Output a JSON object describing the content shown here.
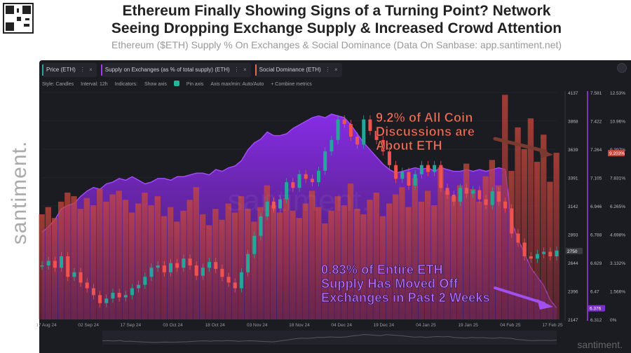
{
  "header": {
    "headline_line1": "Ethereum Finally Showing Signs of a Turning Point? Network",
    "headline_line2": "Seeing Dropping Exchange Supply & Increased Crowd Attention",
    "subtitle": "Ethereum ($ETH) Supply % On Exchanges & Social Dominance (Data On Sanbase: app.santiment.net)"
  },
  "side_brand": "santiment.",
  "watermark": "santiment.",
  "tabs": [
    {
      "label": "Price (ETH)",
      "color": "#26a69a"
    },
    {
      "label": "Supply on Exchanges (as % of total supply) (ETH)",
      "color": "#9b3ef0"
    },
    {
      "label": "Social Dominance (ETH)",
      "color": "#e86a4b"
    }
  ],
  "toolbar": {
    "style": "Style: Candles",
    "interval": "Interval: 12h",
    "indicators": "Indicators:",
    "show_axis": "Show axis",
    "pin_axis": "Pin axis",
    "axis_max_min": "Axis max/min: Auto/Auto",
    "combine": "+ Combine metrics"
  },
  "annotations": {
    "top": [
      "9.2% of All Coin",
      "Discussions are",
      "About ETH"
    ],
    "bottom": [
      "0.83% of Entire ETH",
      "Supply Has Moved Off",
      "Exchanges in Past 2 Weeks"
    ]
  },
  "chart_data": {
    "type": "line",
    "x_ticks": [
      "17 Aug 24",
      "02 Sep 24",
      "17 Sep 24",
      "03 Oct 24",
      "18 Oct 24",
      "03 Nov 24",
      "18 Nov 24",
      "04 Dec 24",
      "19 Dec 24",
      "04 Jan 25",
      "19 Jan 25",
      "04 Feb 25",
      "17 Feb 25"
    ],
    "axes": {
      "price": {
        "ticks": [
          4137,
          3868,
          3639,
          3391,
          3142,
          2893,
          2644,
          2396,
          2147
        ],
        "range": [
          2147,
          4137
        ],
        "current_label": "2750"
      },
      "supply_pct": {
        "ticks": [
          7.581,
          7.422,
          7.264,
          7.105,
          6.946,
          6.788,
          6.629,
          6.47,
          6.312
        ],
        "range": [
          6.312,
          7.581
        ],
        "current_label": "6.376"
      },
      "social_dominance_pct": {
        "ticks": [
          "12.53%",
          "10.96%",
          "9.397%",
          "7.831%",
          "6.265%",
          "4.698%",
          "3.132%",
          "1.566%",
          "0%"
        ],
        "range": [
          0,
          12.53
        ],
        "current_label": "9.203%"
      }
    },
    "series": [
      {
        "name": "Price (ETH)",
        "color": "#26a69a",
        "values": [
          2620,
          2660,
          2600,
          2700,
          2520,
          2560,
          2470,
          2420,
          2360,
          2290,
          2330,
          2380,
          2340,
          2360,
          2420,
          2450,
          2520,
          2600,
          2620,
          2560,
          2640,
          2600,
          2680,
          2620,
          2530,
          2600,
          2650,
          2590,
          2520,
          2470,
          2420,
          2560,
          2720,
          2880,
          3050,
          3180,
          3120,
          3200,
          3350,
          3300,
          3420,
          3380,
          3350,
          3450,
          3620,
          3720,
          3900,
          3860,
          3750,
          3680,
          3900,
          3800,
          3720,
          3620,
          3500,
          3380,
          3440,
          3320,
          3420,
          3500,
          3440,
          3500,
          3300,
          3240,
          3180,
          3300,
          3250,
          3280,
          3200,
          3150,
          3270,
          3180,
          3120,
          2900,
          2820,
          2700,
          2680,
          2720,
          2740,
          2700,
          2750
        ],
        "x_range": [
          "17 Aug 24",
          "17 Feb 25"
        ]
      },
      {
        "name": "Supply on Exchanges (as % of total supply) (ETH)",
        "color": "#9b3ef0",
        "values": [
          6.8,
          6.83,
          6.87,
          6.93,
          6.95,
          6.96,
          7.0,
          7.03,
          7.05,
          7.04,
          7.07,
          7.08,
          7.1,
          7.09,
          7.11,
          7.09,
          7.07,
          7.08,
          7.1,
          7.1,
          7.09,
          7.11,
          7.11,
          7.12,
          7.13,
          7.13,
          7.12,
          7.15,
          7.14,
          7.16,
          7.17,
          7.2,
          7.26,
          7.3,
          7.32,
          7.36,
          7.34,
          7.34,
          7.35,
          7.38,
          7.4,
          7.42,
          7.44,
          7.45,
          7.44,
          7.46,
          7.45,
          7.44,
          7.4,
          7.35,
          7.3,
          7.26,
          7.22,
          7.18,
          7.15,
          7.13,
          7.14,
          7.15,
          7.16,
          7.15,
          7.16,
          7.14,
          7.16,
          7.15,
          7.14,
          7.14,
          7.15,
          7.14,
          7.15,
          7.14,
          7.15,
          7.16,
          7.15,
          6.86,
          6.76,
          6.68,
          6.6,
          6.55,
          6.5,
          6.42,
          6.376
        ],
        "x_range": [
          "17 Aug 24",
          "17 Feb 25"
        ]
      },
      {
        "name": "Social Dominance (ETH)",
        "color": "#e86a4b",
        "values": [
          5.8,
          6.2,
          5.6,
          6.5,
          7.0,
          6.8,
          6.1,
          6.7,
          6.3,
          7.2,
          6.5,
          6.9,
          7.1,
          6.6,
          5.9,
          6.4,
          7.0,
          6.3,
          6.8,
          5.7,
          6.2,
          5.4,
          6.0,
          6.6,
          7.3,
          5.8,
          5.2,
          6.1,
          5.5,
          6.4,
          5.9,
          6.8,
          6.1,
          5.4,
          6.2,
          7.4,
          6.3,
          5.9,
          6.7,
          6.0,
          5.6,
          6.4,
          7.1,
          6.2,
          5.3,
          6.0,
          6.8,
          6.3,
          7.5,
          6.1,
          5.8,
          6.6,
          7.0,
          5.7,
          6.4,
          6.9,
          7.3,
          6.2,
          7.8,
          6.5,
          7.1,
          6.3,
          8.4,
          7.1,
          6.8,
          7.4,
          8.6,
          7.2,
          6.5,
          7.9,
          8.8,
          7.4,
          12.4,
          8.2,
          10.6,
          9.4,
          11.1,
          8.7,
          10.2,
          7.6,
          9.2
        ],
        "x_range": [
          "17 Aug 24",
          "17 Feb 25"
        ]
      }
    ]
  }
}
